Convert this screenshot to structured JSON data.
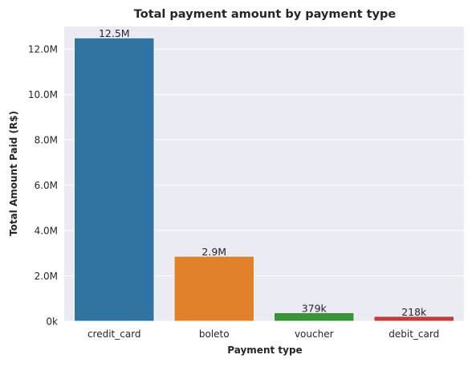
{
  "chart_data": {
    "type": "bar",
    "title": "Total payment amount by payment type",
    "xlabel": "Payment type",
    "ylabel": "Total Amount Paid (R$)",
    "categories": [
      "credit_card",
      "boleto",
      "voucher",
      "debit_card"
    ],
    "values": [
      12500000,
      2870000,
      379000,
      218000
    ],
    "data_labels": [
      "12.5M",
      "2.9M",
      "379k",
      "218k"
    ],
    "colors": [
      "#3274a1",
      "#e1812c",
      "#3a923a",
      "#c03d3e"
    ],
    "ylim": [
      0,
      13000000
    ],
    "yticks": [
      0,
      2000000,
      4000000,
      6000000,
      8000000,
      10000000,
      12000000
    ],
    "ytick_labels": [
      "0k",
      "2.0M",
      "4.0M",
      "6.0M",
      "8.0M",
      "10.0M",
      "12.0M"
    ],
    "grid": true,
    "background": "#eaeaf2",
    "grid_color": "#ffffff"
  }
}
